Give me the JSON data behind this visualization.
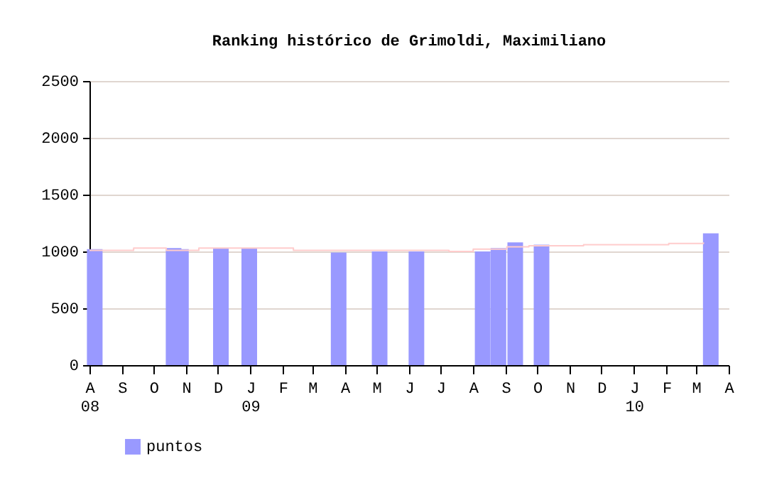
{
  "chart_data": {
    "type": "bar",
    "title": "Ranking histórico de Grimoldi, Maximiliano",
    "xlim": [
      "2008-08-01",
      "2010-04-01"
    ],
    "xticks": [
      {
        "value": "2008-08-01",
        "label": "A\n08"
      },
      {
        "value": "2008-09-01",
        "label": "S"
      },
      {
        "value": "2008-10-01",
        "label": "O"
      },
      {
        "value": "2008-11-01",
        "label": "N"
      },
      {
        "value": "2008-12-01",
        "label": "D"
      },
      {
        "value": "2009-01-01",
        "label": "J\n09"
      },
      {
        "value": "2009-02-01",
        "label": "F"
      },
      {
        "value": "2009-03-01",
        "label": "M"
      },
      {
        "value": "2009-04-01",
        "label": "A"
      },
      {
        "value": "2009-05-01",
        "label": "M"
      },
      {
        "value": "2009-06-01",
        "label": "J"
      },
      {
        "value": "2009-07-01",
        "label": "J"
      },
      {
        "value": "2009-08-01",
        "label": "A"
      },
      {
        "value": "2009-09-01",
        "label": "S"
      },
      {
        "value": "2009-10-01",
        "label": "O"
      },
      {
        "value": "2009-11-01",
        "label": "N"
      },
      {
        "value": "2009-12-01",
        "label": "D"
      },
      {
        "value": "2010-01-01",
        "label": "J\n10"
      },
      {
        "value": "2010-02-01",
        "label": "F"
      },
      {
        "value": "2010-03-01",
        "label": "M"
      },
      {
        "value": "2010-04-01",
        "label": "A"
      }
    ],
    "ylim": [
      0,
      2500
    ],
    "yticks": [
      0,
      500,
      1000,
      1500,
      2000,
      2500
    ],
    "grid": "y",
    "legend": "bottom left",
    "series": [
      {
        "name": "puntos",
        "color": "#9999ff",
        "x": [
          "2008-08-06",
          "2008-10-20",
          "2008-10-27",
          "2008-12-04",
          "2008-12-31",
          "2009-03-26",
          "2009-05-04",
          "2009-06-08",
          "2009-08-10",
          "2009-08-25",
          "2009-09-10",
          "2009-10-05",
          "2010-03-15"
        ],
        "values": [
          1020,
          1030,
          1020,
          1030,
          1030,
          990,
          1000,
          1000,
          1000,
          1030,
          1080,
          1060,
          1160
        ]
      },
      {
        "type": "step",
        "color": "#ffcccc",
        "x": [
          "2008-08-01",
          "2008-09-12",
          "2008-10-13",
          "2008-11-13",
          "2009-02-11",
          "2009-07-09",
          "2009-08-01",
          "2009-09-02",
          "2009-09-23",
          "2009-11-14",
          "2010-02-03",
          "2010-03-08"
        ],
        "values": [
          1010,
          1030,
          1010,
          1030,
          1010,
          1000,
          1020,
          1040,
          1050,
          1060,
          1070,
          1080
        ]
      }
    ]
  }
}
